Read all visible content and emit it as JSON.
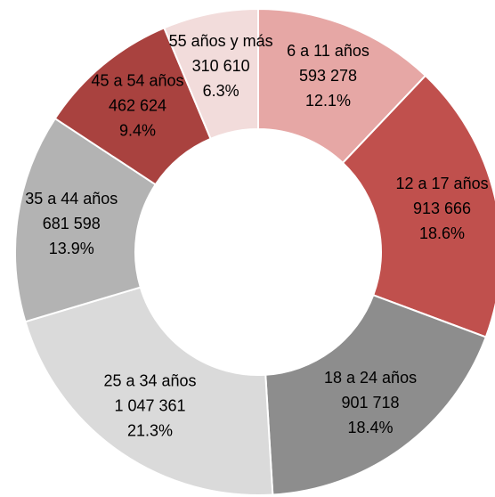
{
  "chart_data": {
    "type": "donut",
    "categories": [
      "6 a 11 años",
      "12 a 17 años",
      "18 a 24 años",
      "25 a 34 años",
      "35 a 44 años",
      "45 a 54 años",
      "55 años y más"
    ],
    "values": [
      593278,
      913666,
      901718,
      1047361,
      681598,
      462624,
      310610
    ],
    "value_labels": [
      "593 278",
      "913 666",
      "901 718",
      "1 047 361",
      "681 598",
      "462 624",
      "310 610"
    ],
    "percents": [
      12.1,
      18.6,
      18.4,
      21.3,
      13.9,
      9.4,
      6.3
    ],
    "percent_labels": [
      "12.1%",
      "18.6%",
      "18.4%",
      "21.3%",
      "13.9%",
      "9.4%",
      "6.3%"
    ],
    "colors": [
      "#e6a7a5",
      "#c0504d",
      "#8d8d8d",
      "#dadada",
      "#b3b3b3",
      "#a9423f",
      "#f2dcdb"
    ]
  }
}
